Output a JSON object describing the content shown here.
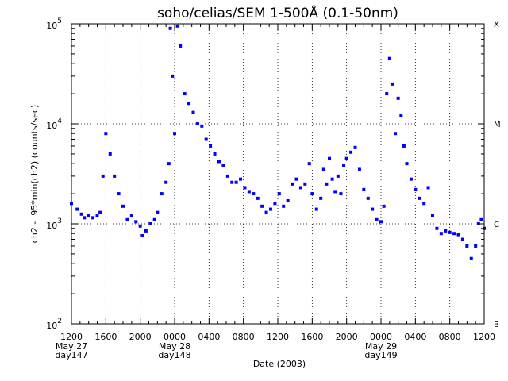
{
  "chart_data": {
    "type": "scatter",
    "title": "soho/celias/SEM    1-500Å (0.1-50nm)",
    "xlabel": "Date (2003)",
    "ylabel": "ch2 - .95*min(ch2) (counts/sec)",
    "y_scale": "log",
    "ylim": [
      100,
      100000
    ],
    "xlim": [
      "2003-05-27 12:00",
      "2003-05-29 12:00"
    ],
    "grid": true,
    "marker_color": "#0000ff",
    "y_ticks": [
      {
        "value": 100,
        "base": "10",
        "exp": "2"
      },
      {
        "value": 1000,
        "base": "10",
        "exp": "3"
      },
      {
        "value": 10000,
        "base": "10",
        "exp": "4"
      },
      {
        "value": 100000,
        "base": "10",
        "exp": "5"
      }
    ],
    "x_ticks": [
      {
        "t": "2003-05-27 12:00",
        "label": "1200",
        "sub1": "May 27",
        "sub2": "day147"
      },
      {
        "t": "2003-05-27 16:00",
        "label": "1600"
      },
      {
        "t": "2003-05-27 20:00",
        "label": "2000"
      },
      {
        "t": "2003-05-28 00:00",
        "label": "0000",
        "sub1": "May 28",
        "sub2": "day148"
      },
      {
        "t": "2003-05-28 04:00",
        "label": "0400"
      },
      {
        "t": "2003-05-28 08:00",
        "label": "0800"
      },
      {
        "t": "2003-05-28 12:00",
        "label": "1200"
      },
      {
        "t": "2003-05-28 16:00",
        "label": "1600"
      },
      {
        "t": "2003-05-28 20:00",
        "label": "2000"
      },
      {
        "t": "2003-05-29 00:00",
        "label": "0000",
        "sub1": "May 29",
        "sub2": "day149"
      },
      {
        "t": "2003-05-29 04:00",
        "label": "0400"
      },
      {
        "t": "2003-05-29 08:00",
        "label": "0800"
      },
      {
        "t": "2003-05-29 12:00",
        "label": "1200"
      }
    ],
    "flare_classes": [
      {
        "label": "X",
        "value": 100000
      },
      {
        "label": "M",
        "value": 10000
      },
      {
        "label": "C",
        "value": 1000
      },
      {
        "label": "B",
        "value": 100
      }
    ],
    "series": [
      {
        "points": [
          [
            "2003-05-27 12:00",
            1600
          ],
          [
            "2003-05-27 12:40",
            1400
          ],
          [
            "2003-05-27 13:10",
            1250
          ],
          [
            "2003-05-27 13:30",
            1150
          ],
          [
            "2003-05-27 14:00",
            1200
          ],
          [
            "2003-05-27 14:30",
            1150
          ],
          [
            "2003-05-27 15:00",
            1200
          ],
          [
            "2003-05-27 15:20",
            1300
          ],
          [
            "2003-05-27 15:40",
            3000
          ],
          [
            "2003-05-27 16:00",
            8000
          ],
          [
            "2003-05-27 16:30",
            5000
          ],
          [
            "2003-05-27 17:00",
            3000
          ],
          [
            "2003-05-27 17:30",
            2000
          ],
          [
            "2003-05-27 18:00",
            1500
          ],
          [
            "2003-05-27 18:30",
            1100
          ],
          [
            "2003-05-27 19:00",
            1200
          ],
          [
            "2003-05-27 19:30",
            1050
          ],
          [
            "2003-05-27 20:00",
            950
          ],
          [
            "2003-05-27 20:15",
            760
          ],
          [
            "2003-05-27 20:40",
            850
          ],
          [
            "2003-05-27 21:10",
            1000
          ],
          [
            "2003-05-27 21:40",
            1100
          ],
          [
            "2003-05-27 22:00",
            1300
          ],
          [
            "2003-05-27 22:30",
            2000
          ],
          [
            "2003-05-27 23:00",
            2600
          ],
          [
            "2003-05-27 23:20",
            4000
          ],
          [
            "2003-05-27 23:30",
            90000
          ],
          [
            "2003-05-27 23:45",
            30000
          ],
          [
            "2003-05-28 00:00",
            8000
          ],
          [
            "2003-05-28 00:20",
            95000
          ],
          [
            "2003-05-28 00:40",
            60000
          ],
          [
            "2003-05-28 01:10",
            20000
          ],
          [
            "2003-05-28 01:40",
            16000
          ],
          [
            "2003-05-28 02:10",
            13000
          ],
          [
            "2003-05-28 02:40",
            10000
          ],
          [
            "2003-05-28 03:10",
            9500
          ],
          [
            "2003-05-28 03:40",
            7000
          ],
          [
            "2003-05-28 04:10",
            6000
          ],
          [
            "2003-05-28 04:40",
            5000
          ],
          [
            "2003-05-28 05:10",
            4200
          ],
          [
            "2003-05-28 05:40",
            3800
          ],
          [
            "2003-05-28 06:10",
            3000
          ],
          [
            "2003-05-28 06:40",
            2600
          ],
          [
            "2003-05-28 07:10",
            2600
          ],
          [
            "2003-05-28 07:40",
            2800
          ],
          [
            "2003-05-28 08:10",
            2300
          ],
          [
            "2003-05-28 08:40",
            2100
          ],
          [
            "2003-05-28 09:10",
            2000
          ],
          [
            "2003-05-28 09:40",
            1800
          ],
          [
            "2003-05-28 10:10",
            1500
          ],
          [
            "2003-05-28 10:40",
            1300
          ],
          [
            "2003-05-28 11:10",
            1400
          ],
          [
            "2003-05-28 11:40",
            1600
          ],
          [
            "2003-05-28 12:10",
            2000
          ],
          [
            "2003-05-28 12:40",
            1500
          ],
          [
            "2003-05-28 13:10",
            1700
          ],
          [
            "2003-05-28 13:40",
            2500
          ],
          [
            "2003-05-28 14:10",
            2800
          ],
          [
            "2003-05-28 14:40",
            2300
          ],
          [
            "2003-05-28 15:10",
            2500
          ],
          [
            "2003-05-28 15:40",
            4000
          ],
          [
            "2003-05-28 16:00",
            2000
          ],
          [
            "2003-05-28 16:30",
            1400
          ],
          [
            "2003-05-28 17:00",
            1800
          ],
          [
            "2003-05-28 17:20",
            3500
          ],
          [
            "2003-05-28 17:40",
            2500
          ],
          [
            "2003-05-28 18:00",
            4500
          ],
          [
            "2003-05-28 18:20",
            2800
          ],
          [
            "2003-05-28 18:40",
            2100
          ],
          [
            "2003-05-28 19:00",
            3000
          ],
          [
            "2003-05-28 19:20",
            2000
          ],
          [
            "2003-05-28 19:40",
            3800
          ],
          [
            "2003-05-28 20:00",
            4500
          ],
          [
            "2003-05-28 20:30",
            5200
          ],
          [
            "2003-05-28 21:00",
            5800
          ],
          [
            "2003-05-28 21:30",
            3500
          ],
          [
            "2003-05-28 22:00",
            2200
          ],
          [
            "2003-05-28 22:30",
            1800
          ],
          [
            "2003-05-28 23:00",
            1400
          ],
          [
            "2003-05-28 23:30",
            1100
          ],
          [
            "2003-05-29 00:00",
            1050
          ],
          [
            "2003-05-29 00:20",
            1500
          ],
          [
            "2003-05-29 00:40",
            20000
          ],
          [
            "2003-05-29 01:00",
            45000
          ],
          [
            "2003-05-29 01:20",
            25000
          ],
          [
            "2003-05-29 01:40",
            8000
          ],
          [
            "2003-05-29 02:00",
            18000
          ],
          [
            "2003-05-29 02:20",
            12000
          ],
          [
            "2003-05-29 02:40",
            6000
          ],
          [
            "2003-05-29 03:00",
            4000
          ],
          [
            "2003-05-29 03:30",
            2800
          ],
          [
            "2003-05-29 04:00",
            2200
          ],
          [
            "2003-05-29 04:30",
            1800
          ],
          [
            "2003-05-29 05:00",
            1600
          ],
          [
            "2003-05-29 05:30",
            2300
          ],
          [
            "2003-05-29 06:00",
            1200
          ],
          [
            "2003-05-29 06:30",
            900
          ],
          [
            "2003-05-29 07:00",
            800
          ],
          [
            "2003-05-29 07:30",
            850
          ],
          [
            "2003-05-29 08:00",
            820
          ],
          [
            "2003-05-29 08:30",
            800
          ],
          [
            "2003-05-29 09:00",
            780
          ],
          [
            "2003-05-29 09:30",
            700
          ],
          [
            "2003-05-29 10:00",
            600
          ],
          [
            "2003-05-29 10:30",
            450
          ],
          [
            "2003-05-29 11:00",
            600
          ],
          [
            "2003-05-29 11:20",
            1000
          ],
          [
            "2003-05-29 11:40",
            1100
          ],
          [
            "2003-05-29 12:00",
            900
          ]
        ]
      }
    ]
  }
}
